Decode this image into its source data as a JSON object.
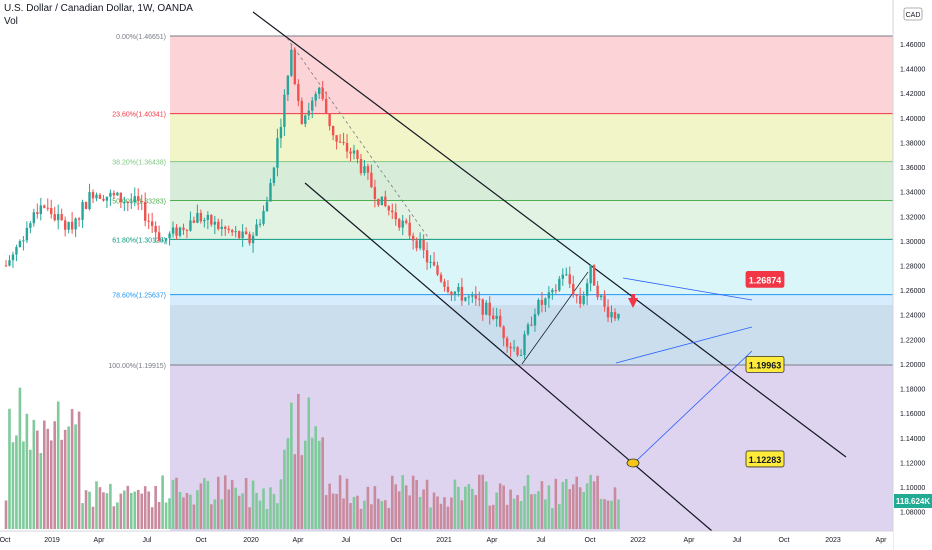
{
  "header": {
    "symbol_line": "U.S. Dollar / Canadian Dollar, 1W, OANDA",
    "volume_label": "Vol",
    "currency_badge": "CAD"
  },
  "chart_data": {
    "type": "candlestick",
    "price_range": [
      1.06,
      1.48
    ],
    "y_ticks": [
      "1.46000",
      "1.44000",
      "1.42000",
      "1.40000",
      "1.38000",
      "1.36000",
      "1.34000",
      "1.32000",
      "1.30000",
      "1.28000",
      "1.26000",
      "1.24000",
      "1.22000",
      "1.20000",
      "1.18000",
      "1.16000",
      "1.14000",
      "1.12000",
      "1.10000",
      "1.08000"
    ],
    "x_ticks": [
      "Oct",
      "2019",
      "Apr",
      "Jul",
      "Oct",
      "2020",
      "Apr",
      "Jul",
      "Oct",
      "2021",
      "Apr",
      "Jul",
      "Oct",
      "2022",
      "Apr",
      "Jul",
      "Oct",
      "2023",
      "Apr"
    ],
    "fibonacci": [
      {
        "label": "0.00%(1.46651)",
        "price": 1.46651,
        "color": "#787b86"
      },
      {
        "label": "23.60%(1.40341)",
        "price": 1.40341,
        "color": "#f23645"
      },
      {
        "label": "38.20%(1.36438)",
        "price": 1.36438,
        "color": "#81c784"
      },
      {
        "label": "50.00%(1.33283)",
        "price": 1.33283,
        "color": "#4caf50"
      },
      {
        "label": "61.80%(1.30128)",
        "price": 1.30128,
        "color": "#089981"
      },
      {
        "label": "78.60%(1.25637)",
        "price": 1.25637,
        "color": "#2196f3"
      },
      {
        "label": "100.00%(1.19915)",
        "price": 1.19915,
        "color": "#787b86"
      }
    ],
    "targets": [
      {
        "label": "1.26874",
        "price": 1.26874,
        "style": "red"
      },
      {
        "label": "1.19963",
        "price": 1.19963,
        "style": "yellow"
      },
      {
        "label": "1.12283",
        "price": 1.12283,
        "style": "yellow"
      }
    ],
    "volume_badge": "118.624K",
    "colors": {
      "up": "#26a69a",
      "down": "#ef5350",
      "vol_up": "#7fc99b",
      "vol_down": "#c98a9e"
    }
  }
}
